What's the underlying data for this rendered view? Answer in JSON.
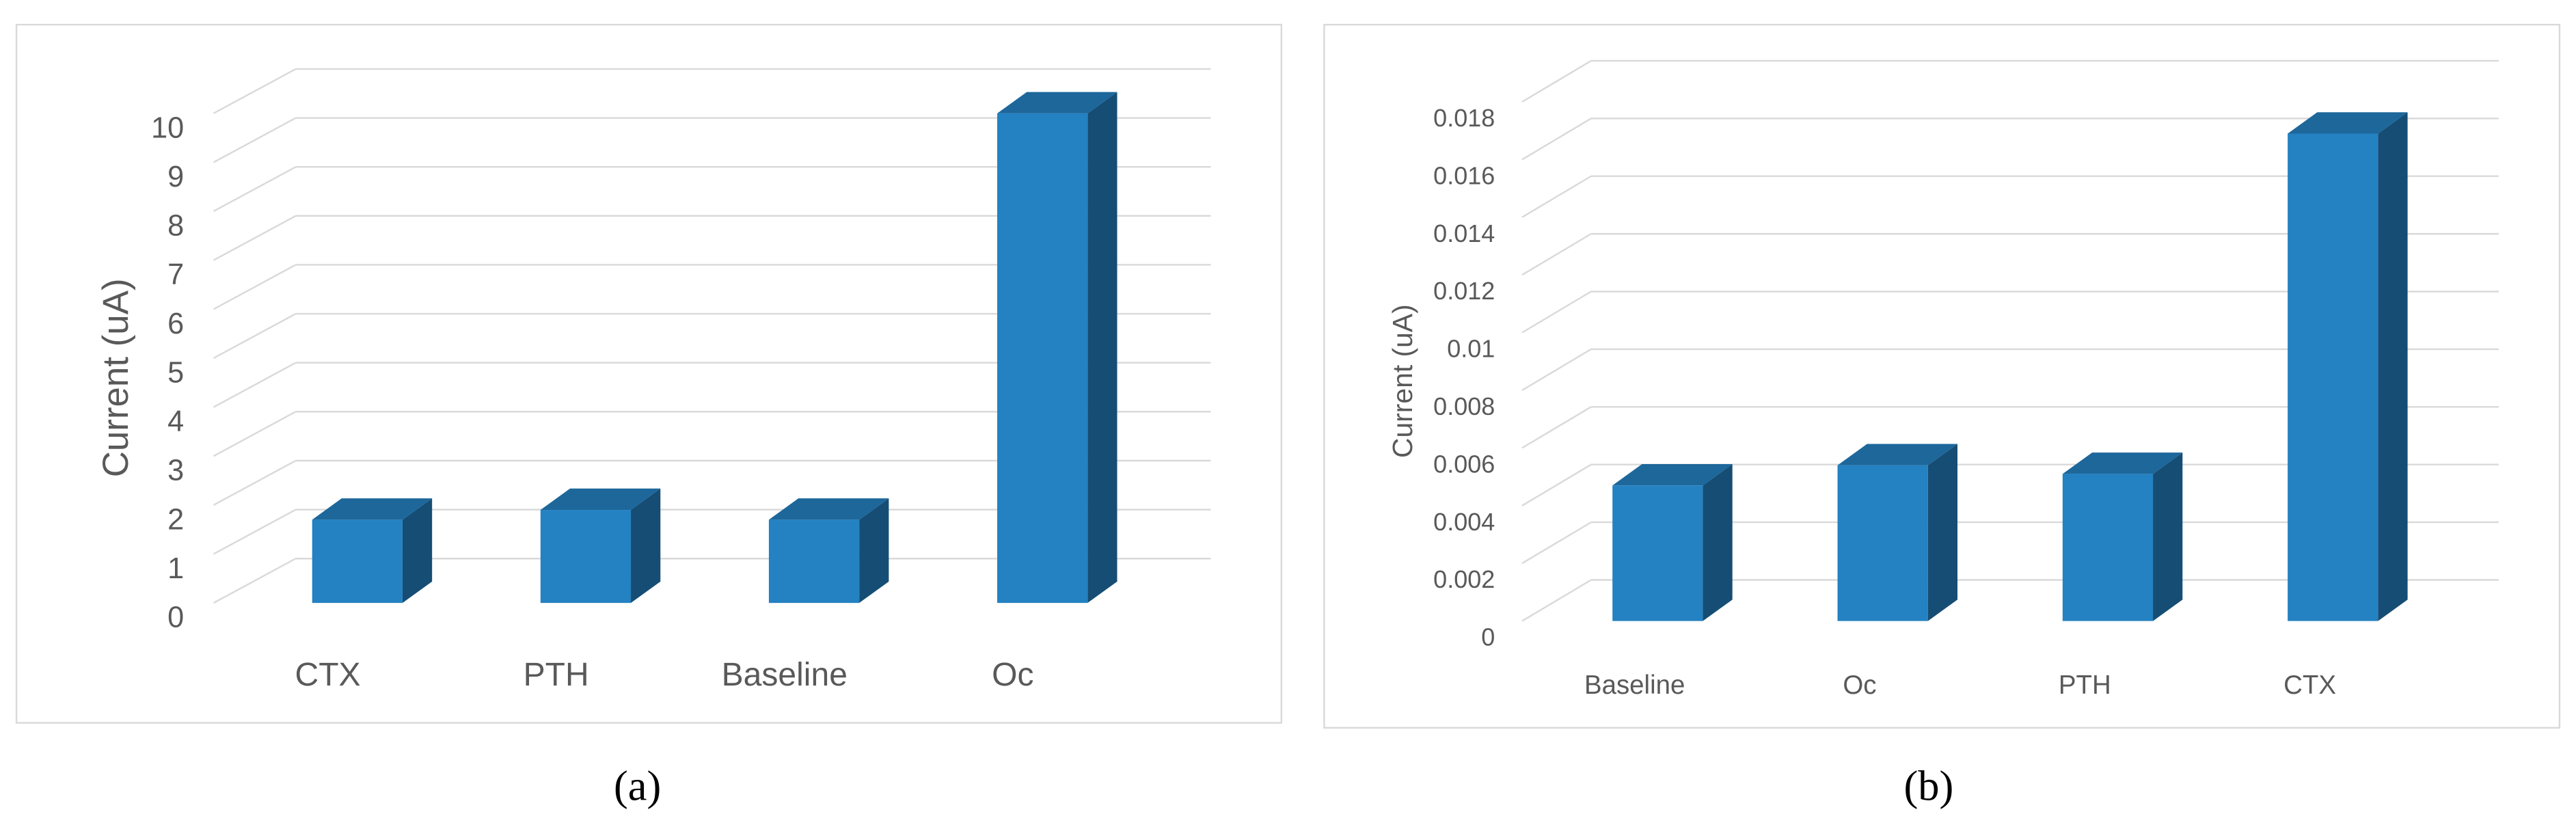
{
  "chart_data": [
    {
      "type": "bar",
      "caption": "(a)",
      "y_label": "Current (uA)",
      "categories": [
        "CTX",
        "PTH",
        "Baseline",
        "Oc"
      ],
      "values": [
        1.7,
        1.9,
        1.7,
        10.0
      ],
      "color": "#2481c2",
      "ylim": [
        0,
        10
      ],
      "yticks": [
        0,
        1,
        2,
        3,
        4,
        5,
        6,
        7,
        8,
        9,
        10
      ],
      "grid": true
    },
    {
      "type": "bar",
      "caption": "(b)",
      "y_label": "Current (uA)",
      "categories": [
        "Baseline",
        "Oc",
        "PTH",
        "CTX"
      ],
      "values": [
        0.0047,
        0.0054,
        0.0051,
        0.0169
      ],
      "color": "#2481c2",
      "ylim": [
        0,
        0.018
      ],
      "yticks": [
        0,
        0.002,
        0.004,
        0.006,
        0.008,
        0.01,
        0.012,
        0.014,
        0.016,
        0.018
      ],
      "grid": true
    }
  ]
}
